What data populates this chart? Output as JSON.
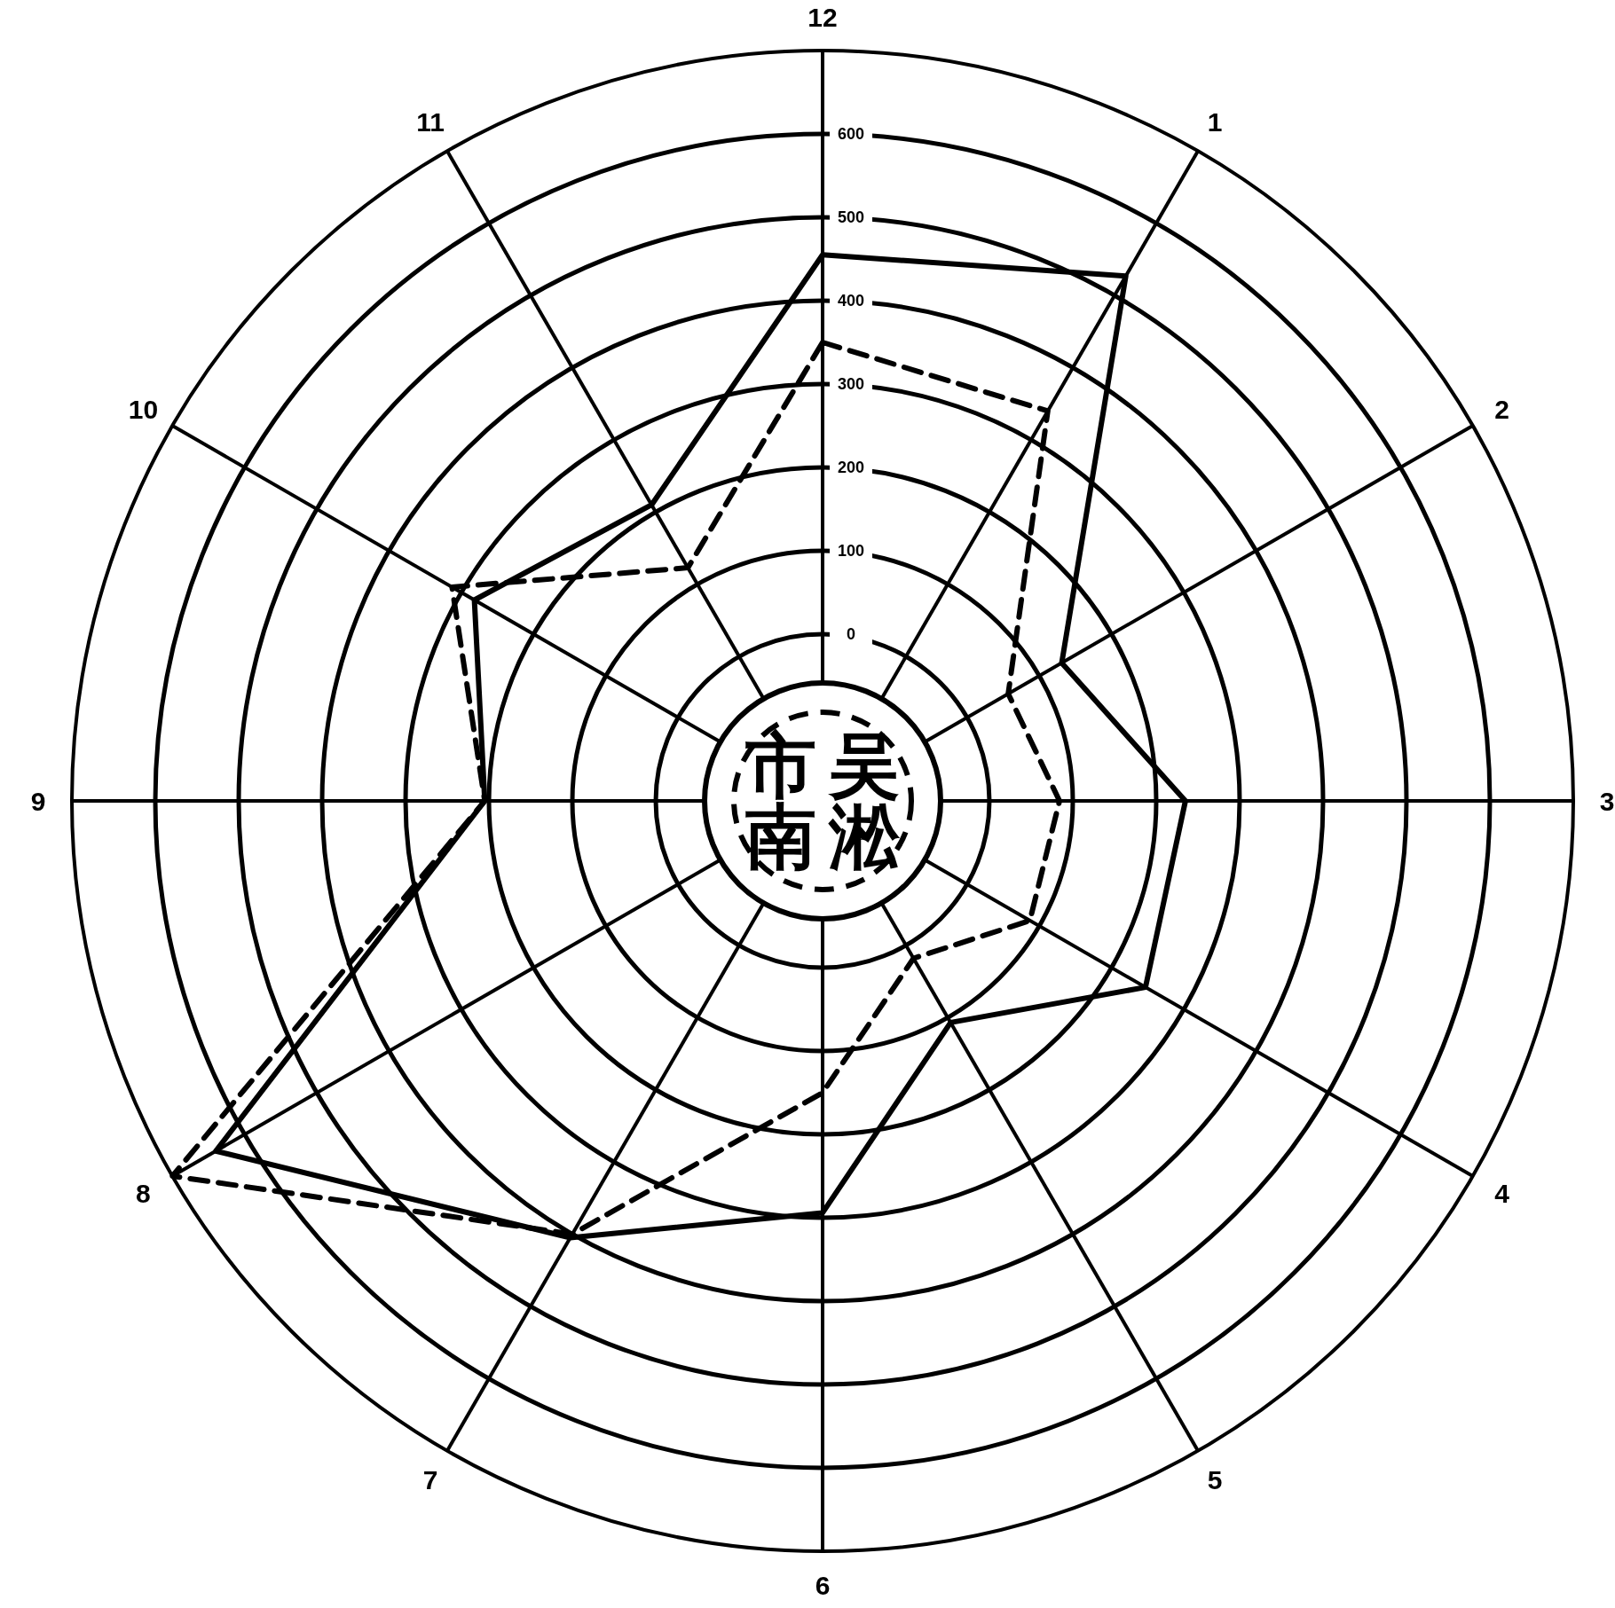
{
  "chart_data": {
    "type": "radar",
    "categories": [
      "12",
      "1",
      "2",
      "3",
      "4",
      "5",
      "6",
      "7",
      "8",
      "9",
      "10",
      "11"
    ],
    "series": [
      {
        "color": "#000000",
        "line_style": "solid",
        "values": [
          455,
          527,
          131,
          235,
          247,
          107,
          294,
          405,
          640,
          205,
          282,
          210
        ]
      },
      {
        "color": "#000000",
        "line_style": "dashed",
        "values": [
          350,
          340,
          57,
          84,
          87,
          18,
          150,
          400,
          700,
          205,
          313,
          123
        ]
      }
    ],
    "ylim": [
      -200,
      700
    ],
    "yticks": [
      0,
      100,
      200,
      300,
      400,
      500,
      600
    ],
    "grid": true,
    "annotations": [
      "市南",
      "吴淞"
    ]
  }
}
